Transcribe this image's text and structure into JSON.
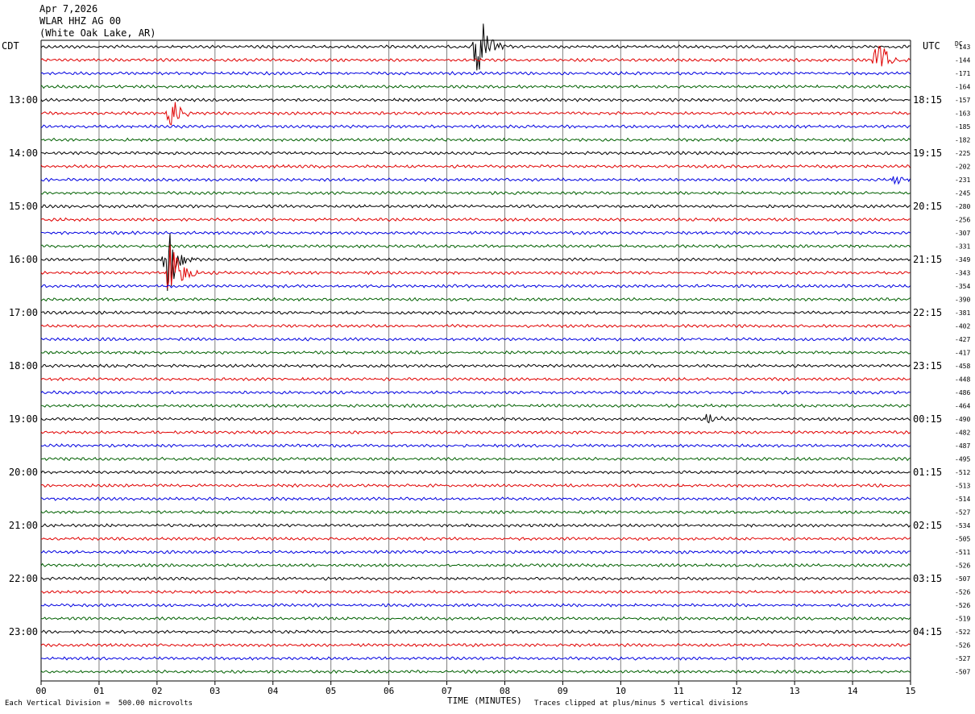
{
  "header": {
    "date": "Apr 7,2026",
    "station": "WLAR HHZ AG 00",
    "location": "(White Oak Lake, AR)"
  },
  "left_axis_label": "CDT",
  "right_axis_label": "UTC",
  "dc_label": "DC",
  "footer": {
    "left": "Each Vertical Division =  500.00 microvolts",
    "center": "TIME (MINUTES)",
    "right": "Traces clipped at plus/minus 5 vertical divisions"
  },
  "colors": {
    "trace_cycle": [
      "#000000",
      "#e00000",
      "#0000e0",
      "#006000"
    ],
    "grid": "#808080"
  },
  "chart_data": {
    "type": "line",
    "title": "WLAR HHZ AG 00",
    "xlabel": "TIME (MINUTES)",
    "x_ticks": [
      "00",
      "01",
      "02",
      "03",
      "04",
      "05",
      "06",
      "07",
      "08",
      "09",
      "10",
      "11",
      "12",
      "13",
      "14",
      "15"
    ],
    "xlim": [
      0,
      15
    ],
    "rows": 48,
    "left_times": [
      "13:00",
      "14:00",
      "15:00",
      "16:00",
      "17:00",
      "18:00",
      "19:00",
      "20:00",
      "21:00",
      "22:00",
      "23:00"
    ],
    "right_times": [
      "18:15",
      "19:15",
      "20:15",
      "21:15",
      "22:15",
      "23:15",
      "00:15",
      "01:15",
      "02:15",
      "03:15",
      "04:15"
    ],
    "time_label_first_row": 4,
    "time_label_row_step": 4,
    "dc_offsets": [
      "-143",
      "-144",
      "-171",
      "-164",
      "-157",
      "-163",
      "-185",
      "-182",
      "-225",
      "-202",
      "-231",
      "-245",
      "-280",
      "-256",
      "-307",
      "-331",
      "-349",
      "-343",
      "-354",
      "-390",
      "-381",
      "-402",
      "-427",
      "-417",
      "-458",
      "-448",
      "-486",
      "-464",
      "-490",
      "-482",
      "-487",
      "-495",
      "-512",
      "-513",
      "-514",
      "-527",
      "-534",
      "-505",
      "-511",
      "-526",
      "-507",
      "-526",
      "-526",
      "-519",
      "-522",
      "-526",
      "-527",
      "-507"
    ],
    "grid": true,
    "events": [
      {
        "row": 0,
        "minute": 7.55,
        "amplitude": 50
      },
      {
        "row": 1,
        "minute": 14.45,
        "amplitude": 30
      },
      {
        "row": 5,
        "minute": 2.25,
        "amplitude": 22
      },
      {
        "row": 10,
        "minute": 14.75,
        "amplitude": 10
      },
      {
        "row": 16,
        "minute": 2.2,
        "amplitude": 50
      },
      {
        "row": 17,
        "minute": 2.25,
        "amplitude": 50
      },
      {
        "row": 28,
        "minute": 11.5,
        "amplitude": 7
      }
    ],
    "annotations": [
      "Each Vertical Division =  500.00 microvolts",
      "Traces clipped at plus/minus 5 vertical divisions"
    ]
  }
}
